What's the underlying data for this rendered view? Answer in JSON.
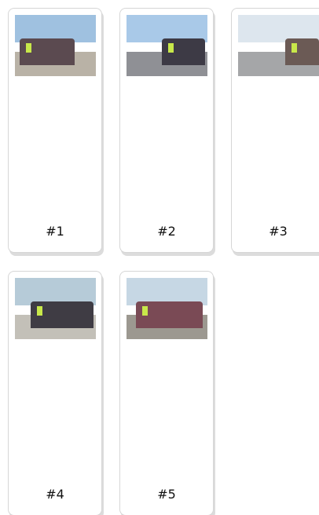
{
  "gallery": {
    "items": [
      {
        "label": "#1"
      },
      {
        "label": "#2"
      },
      {
        "label": "#3"
      },
      {
        "label": "#4"
      },
      {
        "label": "#5"
      }
    ]
  }
}
